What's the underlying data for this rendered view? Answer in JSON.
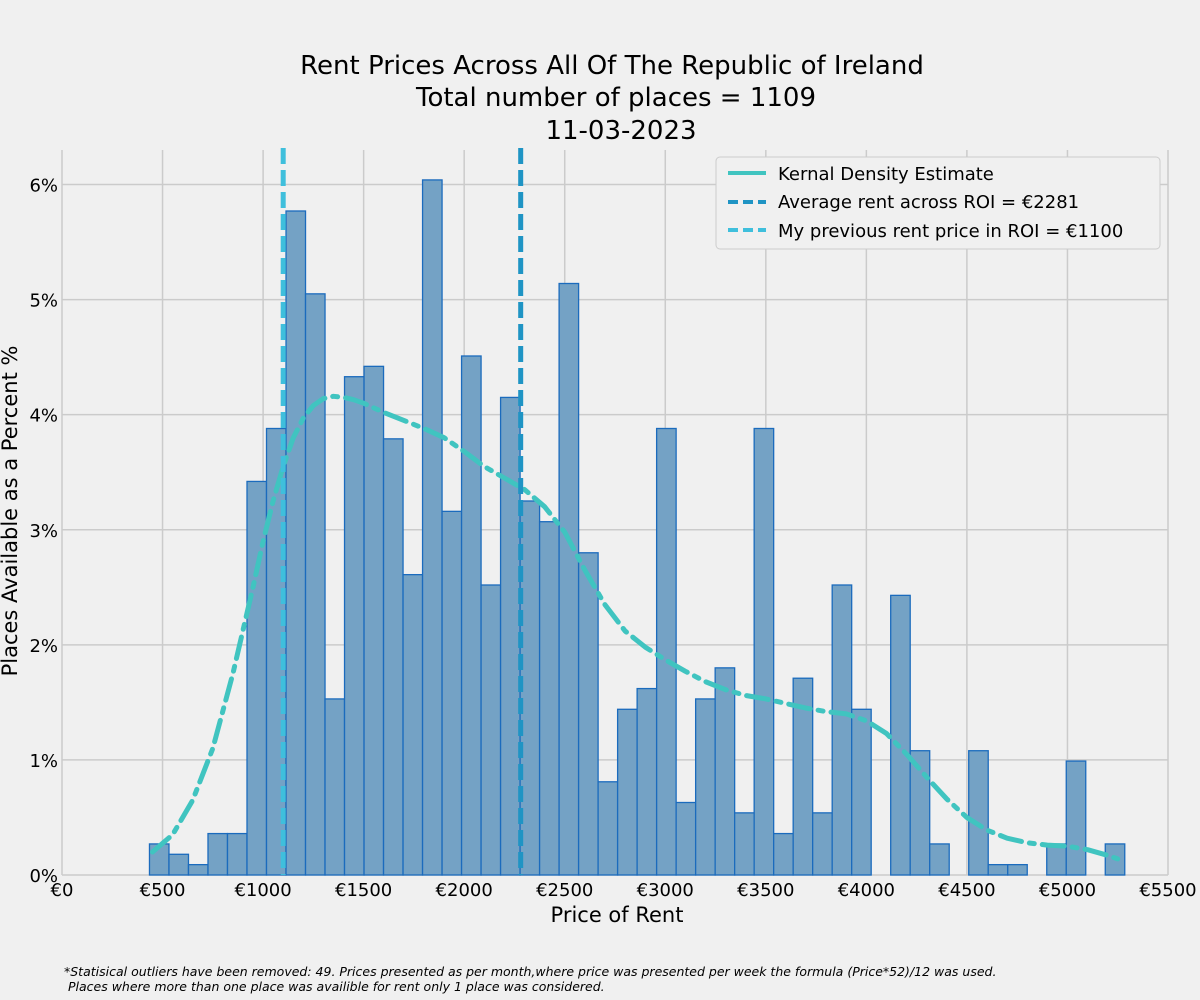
{
  "footnote": {
    "line1": "*Statisical outliers have been removed: 49. Prices presented as per month,where price was presented per week the formula (Price*52)/12 was used.",
    "line2": " Places where more than one place was availible for rent only 1 place was considered."
  },
  "colors": {
    "background": "#f0f0f0",
    "bar_fill": "#74a2c5",
    "bar_edge": "#1b6bbd",
    "kde": "#40c4c0",
    "avg_line": "#1f94c4",
    "prev_line": "#3fbfdc",
    "grid": "#cbcbcb"
  },
  "chart_data": {
    "type": "bar",
    "title": [
      "Rent Prices Across All Of The Republic of Ireland",
      "Total number of places = 1109",
      "11-03-2023"
    ],
    "xlabel": "Price of Rent",
    "ylabel": "Places Available as a Percent %",
    "xlim": [
      0,
      5500
    ],
    "ylim": [
      0,
      6.3
    ],
    "x_ticks": [
      0,
      500,
      1000,
      1500,
      2000,
      2500,
      3000,
      3500,
      4000,
      4500,
      5000,
      5500
    ],
    "x_tick_labels": [
      "€0",
      "€500",
      "€1000",
      "€1500",
      "€2000",
      "€2500",
      "€3000",
      "€3500",
      "€4000",
      "€4500",
      "€5000",
      "€5500"
    ],
    "y_ticks": [
      0,
      1,
      2,
      3,
      4,
      5,
      6
    ],
    "y_tick_labels": [
      "0%",
      "1%",
      "2%",
      "3%",
      "4%",
      "5%",
      "6%"
    ],
    "grid": true,
    "legend_position": "top-right",
    "bin_width": 97,
    "bins": [
      {
        "x": 435,
        "value": 0.27
      },
      {
        "x": 532,
        "value": 0.18
      },
      {
        "x": 629,
        "value": 0.09
      },
      {
        "x": 726,
        "value": 0.36
      },
      {
        "x": 823,
        "value": 0.36
      },
      {
        "x": 920,
        "value": 3.42
      },
      {
        "x": 1017,
        "value": 3.88
      },
      {
        "x": 1114,
        "value": 5.77
      },
      {
        "x": 1211,
        "value": 5.05
      },
      {
        "x": 1308,
        "value": 1.53
      },
      {
        "x": 1405,
        "value": 4.33
      },
      {
        "x": 1502,
        "value": 4.42
      },
      {
        "x": 1599,
        "value": 3.79
      },
      {
        "x": 1696,
        "value": 2.61
      },
      {
        "x": 1793,
        "value": 6.04
      },
      {
        "x": 1890,
        "value": 3.16
      },
      {
        "x": 1987,
        "value": 4.51
      },
      {
        "x": 2084,
        "value": 2.52
      },
      {
        "x": 2181,
        "value": 4.15
      },
      {
        "x": 2278,
        "value": 3.25
      },
      {
        "x": 2375,
        "value": 3.07
      },
      {
        "x": 2472,
        "value": 5.14
      },
      {
        "x": 2569,
        "value": 2.8
      },
      {
        "x": 2666,
        "value": 0.81
      },
      {
        "x": 2763,
        "value": 1.44
      },
      {
        "x": 2860,
        "value": 1.62
      },
      {
        "x": 2957,
        "value": 3.88
      },
      {
        "x": 3054,
        "value": 0.63
      },
      {
        "x": 3151,
        "value": 1.53
      },
      {
        "x": 3248,
        "value": 1.8
      },
      {
        "x": 3345,
        "value": 0.54
      },
      {
        "x": 3442,
        "value": 3.88
      },
      {
        "x": 3539,
        "value": 0.36
      },
      {
        "x": 3636,
        "value": 1.71
      },
      {
        "x": 3733,
        "value": 0.54
      },
      {
        "x": 3830,
        "value": 2.52
      },
      {
        "x": 3927,
        "value": 1.44
      },
      {
        "x": 4121,
        "value": 2.43
      },
      {
        "x": 4218,
        "value": 1.08
      },
      {
        "x": 4315,
        "value": 0.27
      },
      {
        "x": 4509,
        "value": 1.08
      },
      {
        "x": 4606,
        "value": 0.09
      },
      {
        "x": 4703,
        "value": 0.09
      },
      {
        "x": 4897,
        "value": 0.27
      },
      {
        "x": 4994,
        "value": 0.99
      },
      {
        "x": 5188,
        "value": 0.27
      }
    ],
    "kde": {
      "name": "Kernal Density Estimate",
      "x": [
        450,
        550,
        650,
        750,
        850,
        950,
        1000,
        1050,
        1100,
        1150,
        1200,
        1250,
        1300,
        1350,
        1400,
        1450,
        1500,
        1600,
        1700,
        1800,
        1900,
        2000,
        2100,
        2200,
        2300,
        2400,
        2500,
        2600,
        2700,
        2800,
        2900,
        3000,
        3100,
        3200,
        3300,
        3400,
        3500,
        3600,
        3700,
        3800,
        3900,
        4000,
        4100,
        4200,
        4300,
        4400,
        4500,
        4600,
        4700,
        4800,
        4900,
        5000,
        5100,
        5200,
        5250
      ],
      "y": [
        0.2,
        0.35,
        0.65,
        1.1,
        1.75,
        2.5,
        2.9,
        3.25,
        3.55,
        3.8,
        3.97,
        4.08,
        4.14,
        4.16,
        4.15,
        4.13,
        4.1,
        4.02,
        3.95,
        3.88,
        3.8,
        3.68,
        3.55,
        3.45,
        3.35,
        3.2,
        2.98,
        2.65,
        2.35,
        2.12,
        1.98,
        1.87,
        1.77,
        1.68,
        1.61,
        1.56,
        1.53,
        1.49,
        1.45,
        1.42,
        1.4,
        1.34,
        1.23,
        1.05,
        0.85,
        0.66,
        0.5,
        0.39,
        0.32,
        0.28,
        0.26,
        0.25,
        0.22,
        0.17,
        0.14
      ]
    },
    "vlines": [
      {
        "name": "Average rent across ROI = €2281",
        "x": 2281
      },
      {
        "name": "My previous rent price in ROI = €1100",
        "x": 1100
      }
    ]
  }
}
